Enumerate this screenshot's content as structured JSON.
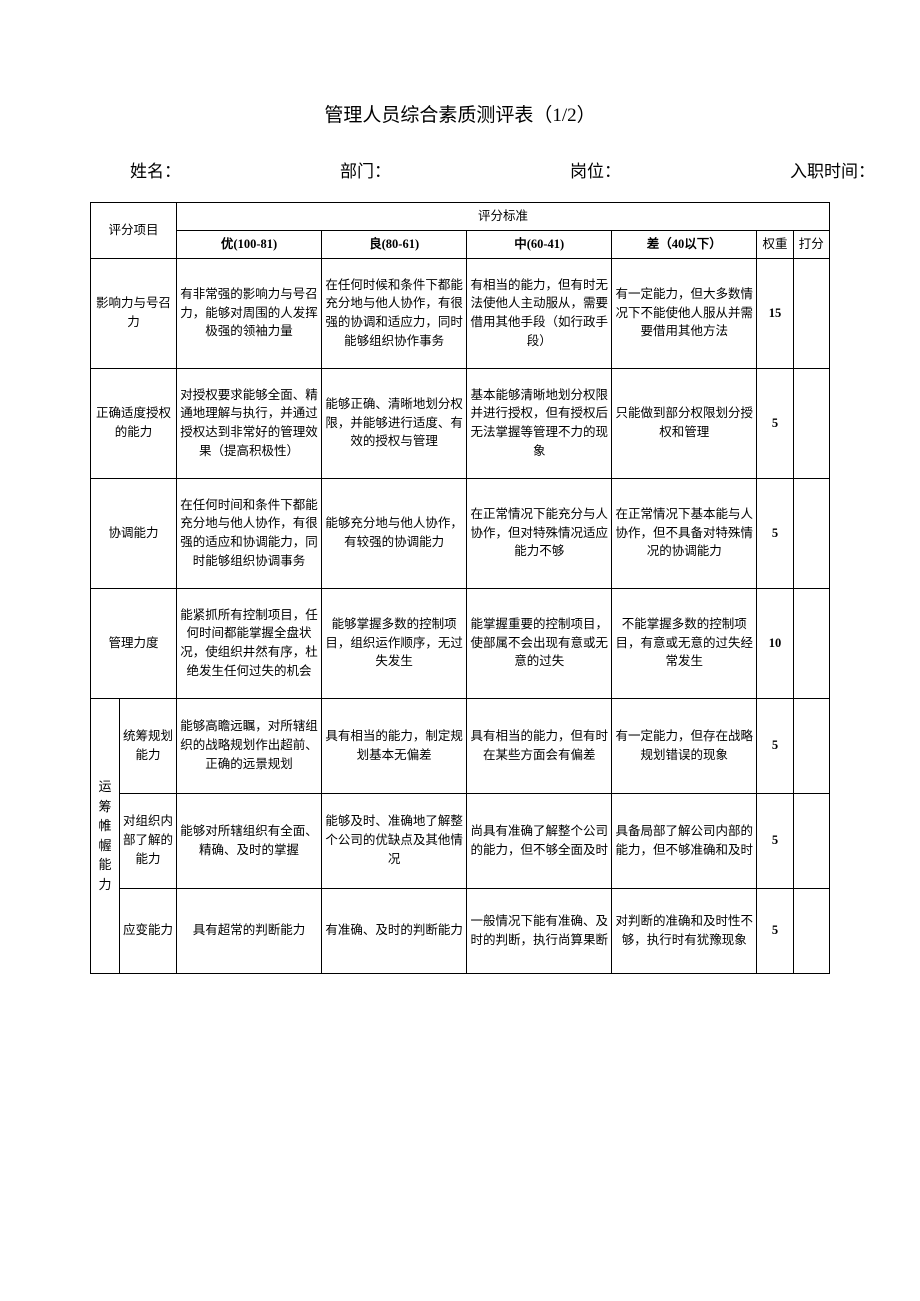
{
  "title": "管理人员综合素质测评表（1/2）",
  "header_labels": {
    "name": "姓名：",
    "dept": "部门：",
    "position": "岗位：",
    "entry_date": "入职时间："
  },
  "table_headers": {
    "item": "评分项目",
    "standard": "评分标准",
    "excellent": "优(100-81)",
    "good": "良(80-61)",
    "medium": "中(60-41)",
    "poor": "差（40以下）",
    "weight": "权重",
    "score": "打分"
  },
  "groups": [
    {
      "name_vertical": "运筹帷幄能力",
      "rows": [
        {
          "sub": "统筹规划能力",
          "excellent": "能够高瞻远瞩，对所辖组织的战略规划作出超前、正确的远景规划",
          "good": "具有相当的能力，制定规划基本无偏差",
          "medium": "具有相当的能力，但有时在某些方面会有偏差",
          "poor": "有一定能力，但存在战略规划错误的现象",
          "weight": "5"
        },
        {
          "sub": "对组织内部了解的能力",
          "excellent": "能够对所辖组织有全面、精确、及时的掌握",
          "good": "能够及时、准确地了解整个公司的优缺点及其他情况",
          "medium": "尚具有准确了解整个公司的能力，但不够全面及时",
          "poor": "具备局部了解公司内部的能力，但不够准确和及时",
          "weight": "5"
        },
        {
          "sub": "应变能力",
          "excellent": "具有超常的判断能力",
          "good": "有准确、及时的判断能力",
          "medium": "一般情况下能有准确、及时的判断，执行尚算果断",
          "poor": "对判断的准确和及时性不够，执行时有犹豫现象",
          "weight": "5"
        }
      ]
    }
  ],
  "direct_rows": [
    {
      "name": "影响力与号召力",
      "excellent": "有非常强的影响力与号召力，能够对周围的人发挥极强的领袖力量",
      "good": "在任何时候和条件下都能充分地与他人协作，有很强的协调和适应力，同时能够组织协作事务",
      "medium": "有相当的能力，但有时无法使他人主动服从，需要借用其他手段（如行政手段）",
      "poor": "有一定能力，但大多数情况下不能使他人服从并需要借用其他方法",
      "weight": "15"
    },
    {
      "name": "正确适度授权的能力",
      "excellent": "对授权要求能够全面、精通地理解与执行，并通过授权达到非常好的管理效果（提高积极性）",
      "good": "能够正确、清晰地划分权限，并能够进行适度、有效的授权与管理",
      "medium": "基本能够清晰地划分权限并进行授权，但有授权后无法掌握等管理不力的现象",
      "poor": "只能做到部分权限划分授权和管理",
      "weight": "5"
    },
    {
      "name": "协调能力",
      "excellent": "在任何时间和条件下都能充分地与他人协作，有很强的适应和协调能力，同时能够组织协调事务",
      "good": "能够充分地与他人协作，有较强的协调能力",
      "medium": "在正常情况下能充分与人协作，但对特殊情况适应能力不够",
      "poor": "在正常情况下基本能与人协作，但不具备对特殊情况的协调能力",
      "weight": "5"
    },
    {
      "name": "管理力度",
      "excellent": "能紧抓所有控制项目，任何时间都能掌握全盘状况，使组织井然有序，杜绝发生任何过失的机会",
      "good": "能够掌握多数的控制项目，组织运作顺序，无过失发生",
      "medium": "能掌握重要的控制项目，使部属不会出现有意或无意的过失",
      "poor": "不能掌握多数的控制项目，有意或无意的过失经常发生",
      "weight": "10"
    }
  ],
  "colors": {
    "text": "#000000",
    "border": "#000000",
    "background": "#ffffff"
  }
}
